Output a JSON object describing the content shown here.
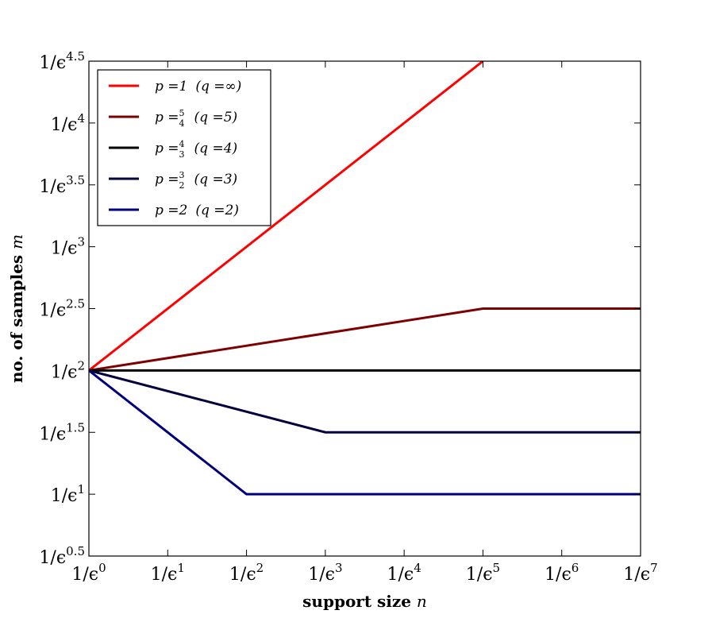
{
  "chart_data": {
    "type": "line",
    "title": "",
    "xlabel": {
      "text": "support size ",
      "math": "n"
    },
    "ylabel": {
      "text": "no. of samples ",
      "math": "m"
    },
    "x_ticks": [
      {
        "value": 0,
        "base": "1/ϵ",
        "exp": "0"
      },
      {
        "value": 1,
        "base": "1/ϵ",
        "exp": "1"
      },
      {
        "value": 2,
        "base": "1/ϵ",
        "exp": "2"
      },
      {
        "value": 3,
        "base": "1/ϵ",
        "exp": "3"
      },
      {
        "value": 4,
        "base": "1/ϵ",
        "exp": "4"
      },
      {
        "value": 5,
        "base": "1/ϵ",
        "exp": "5"
      },
      {
        "value": 6,
        "base": "1/ϵ",
        "exp": "6"
      },
      {
        "value": 7,
        "base": "1/ϵ",
        "exp": "7"
      }
    ],
    "y_ticks": [
      {
        "value": 0.5,
        "base": "1/ϵ",
        "exp": "0.5"
      },
      {
        "value": 1,
        "base": "1/ϵ",
        "exp": "1"
      },
      {
        "value": 1.5,
        "base": "1/ϵ",
        "exp": "1.5"
      },
      {
        "value": 2,
        "base": "1/ϵ",
        "exp": "2"
      },
      {
        "value": 2.5,
        "base": "1/ϵ",
        "exp": "2.5"
      },
      {
        "value": 3,
        "base": "1/ϵ",
        "exp": "3"
      },
      {
        "value": 3.5,
        "base": "1/ϵ",
        "exp": "3.5"
      },
      {
        "value": 4,
        "base": "1/ϵ",
        "exp": "4"
      },
      {
        "value": 4.5,
        "base": "1/ϵ",
        "exp": "4.5"
      }
    ],
    "xlim": [
      0,
      7
    ],
    "ylim": [
      0.5,
      4.5
    ],
    "grid": false,
    "legend": "top-left",
    "series": [
      {
        "color": "#ff0000",
        "label": {
          "p": "p =1",
          "q": "(q =∞)",
          "frac": null
        },
        "x": [
          0,
          5
        ],
        "y": [
          2,
          4.5
        ]
      },
      {
        "color": "#7f0000",
        "label": {
          "p": "p =",
          "q": "(q =5)",
          "frac": [
            "5",
            "4"
          ]
        },
        "x": [
          0,
          5,
          7
        ],
        "y": [
          2,
          2.5,
          2.5
        ]
      },
      {
        "color": "#000000",
        "label": {
          "p": "p =",
          "q": "(q =4)",
          "frac": [
            "4",
            "3"
          ]
        },
        "x": [
          0,
          7
        ],
        "y": [
          2,
          2
        ]
      },
      {
        "color": "#00003f",
        "label": {
          "p": "p =",
          "q": "(q =3)",
          "frac": [
            "3",
            "2"
          ]
        },
        "x": [
          0,
          3,
          7
        ],
        "y": [
          2,
          1.5,
          1.5
        ]
      },
      {
        "color": "#00007f",
        "label": {
          "p": "p =2",
          "q": "(q =2)",
          "frac": null
        },
        "x": [
          0,
          2,
          7
        ],
        "y": [
          2,
          1,
          1
        ]
      }
    ]
  }
}
